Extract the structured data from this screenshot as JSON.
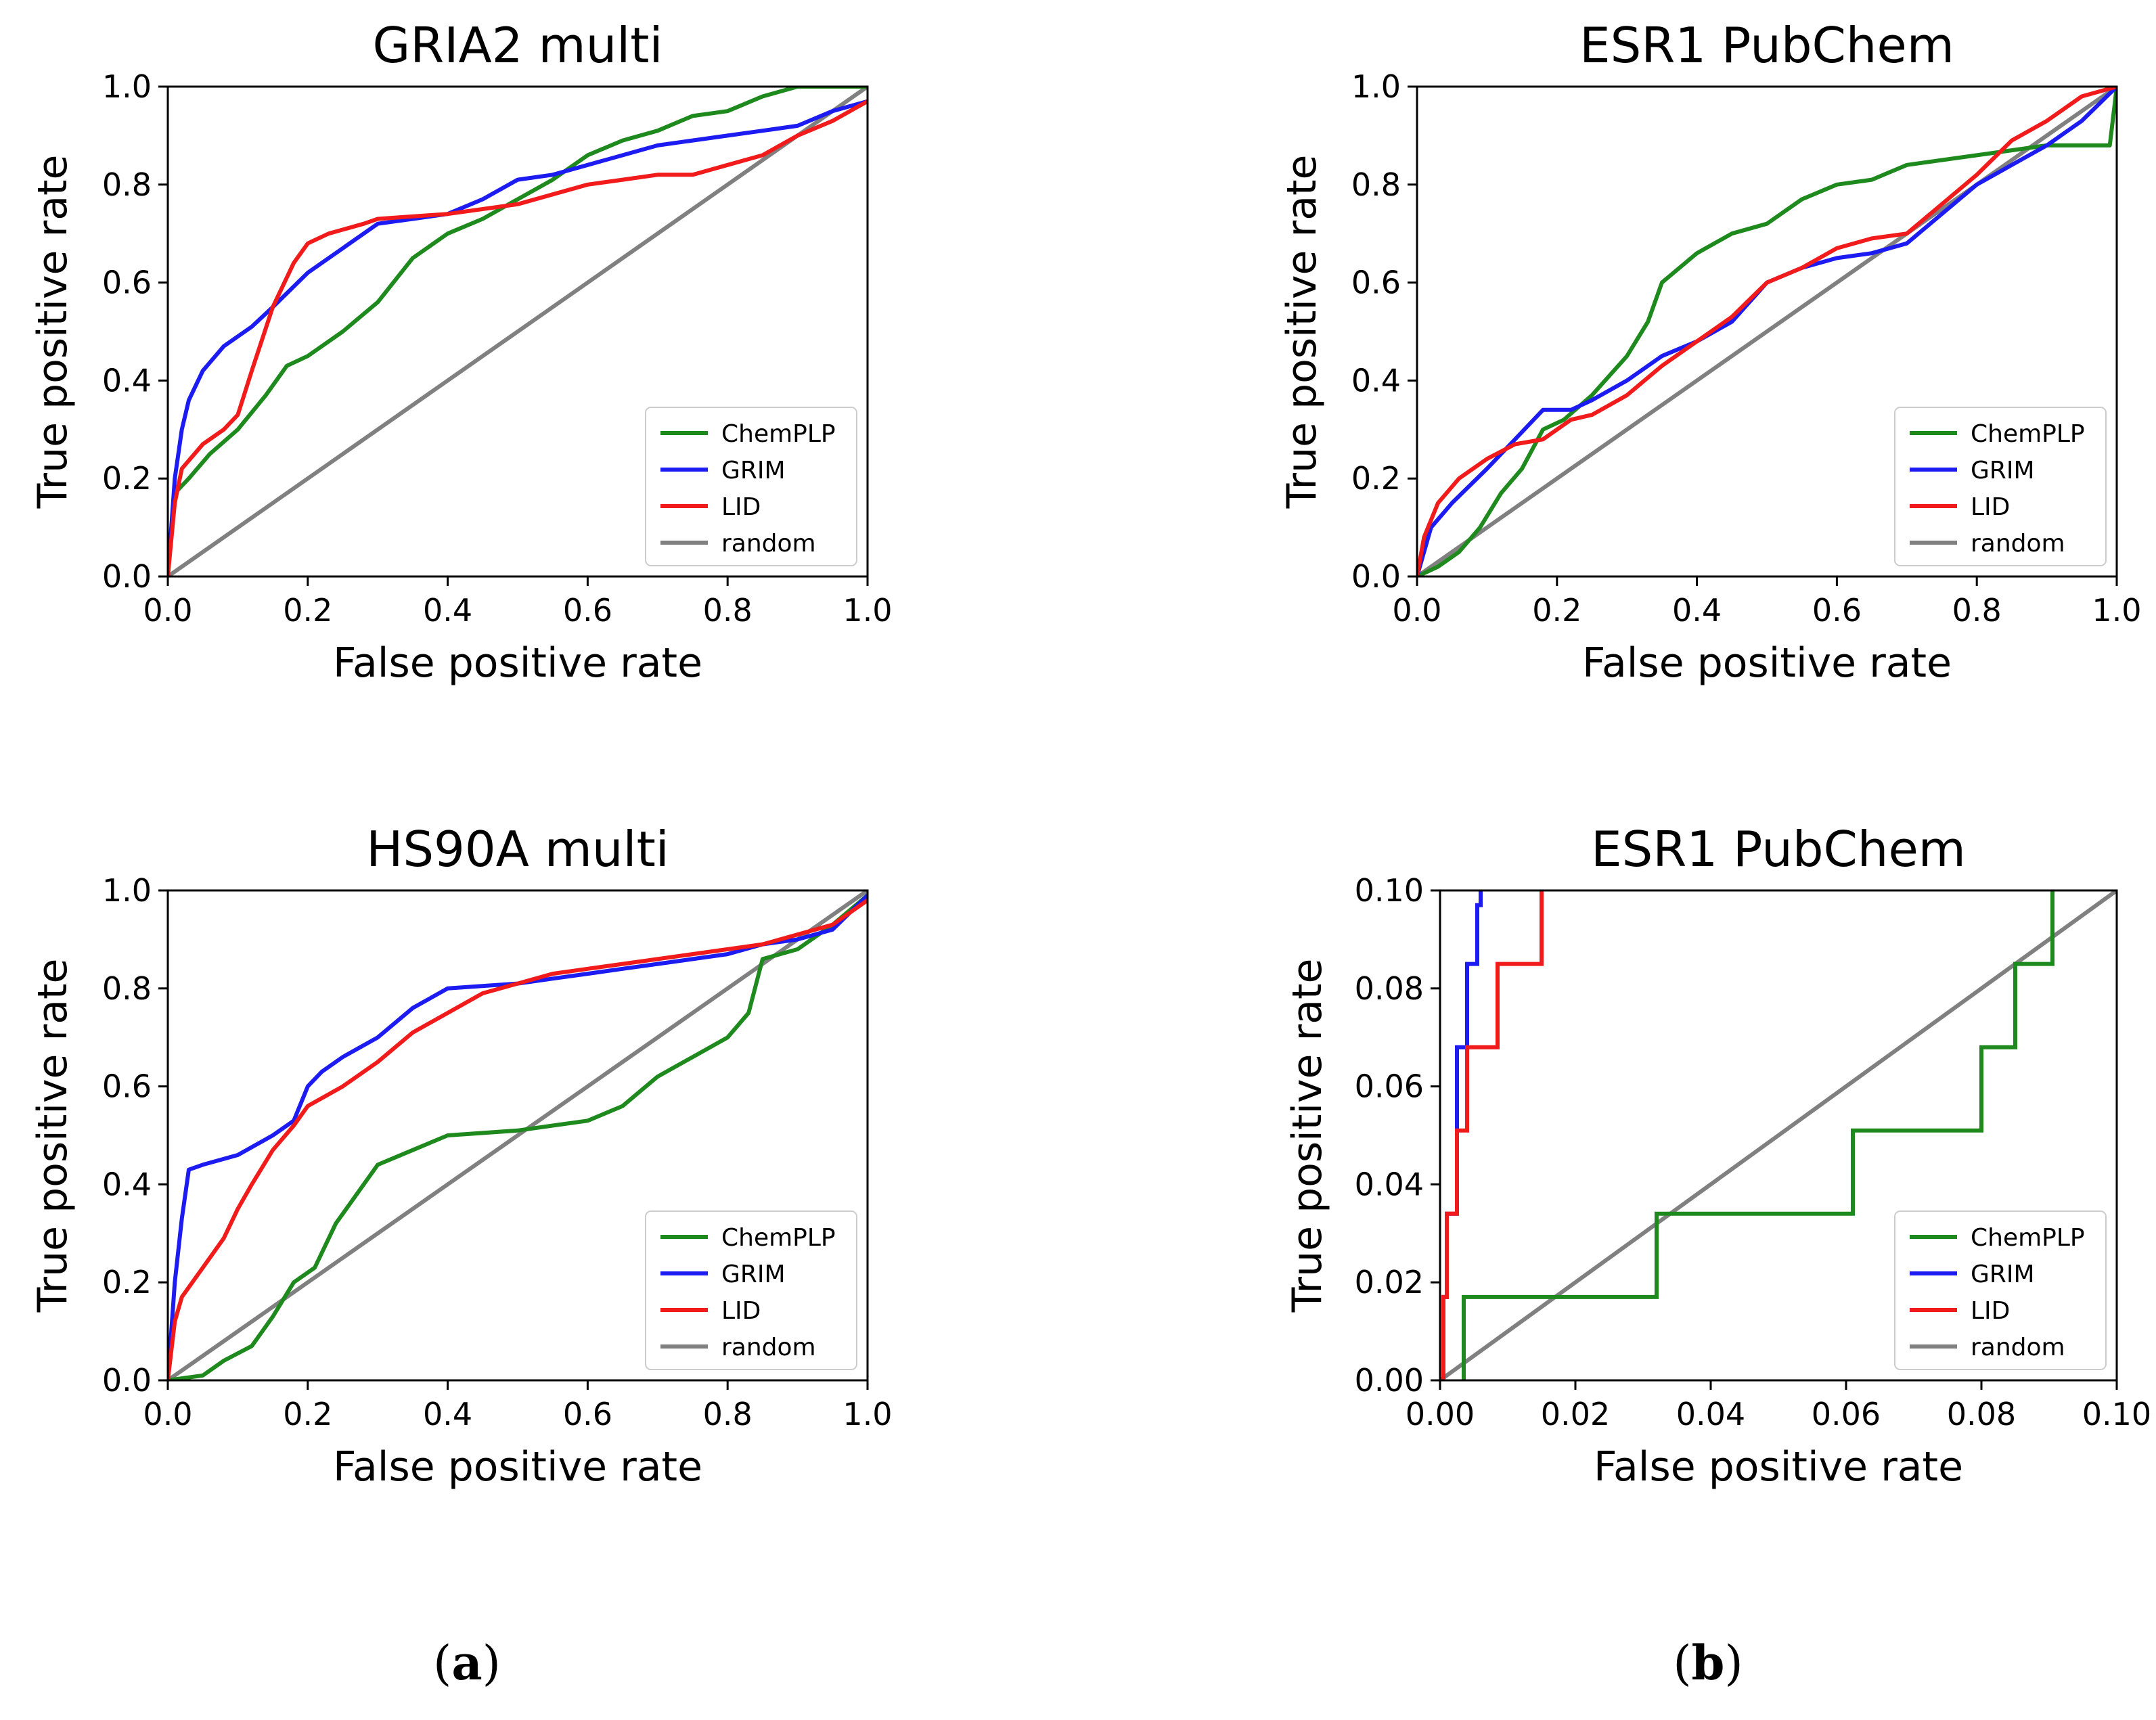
{
  "colors": {
    "ChemPLP": "#1e8a1e",
    "GRIM": "#1b1bf2",
    "LID": "#f21b1b",
    "random": "#808080"
  },
  "captions": {
    "a_open": "(",
    "a_letter": "a",
    "a_close": ")",
    "b_open": "(",
    "b_letter": "b",
    "b_close": ")"
  },
  "chart_data": [
    {
      "type": "line",
      "title": "GRIA2 multi",
      "xlabel": "False positive rate",
      "ylabel": "True positive rate",
      "xlim": [
        0,
        1
      ],
      "ylim": [
        0,
        1
      ],
      "xticks": [
        "0.0",
        "0.2",
        "0.4",
        "0.6",
        "0.8",
        "1.0"
      ],
      "yticks": [
        "0.0",
        "0.2",
        "0.4",
        "0.6",
        "0.8",
        "1.0"
      ],
      "legend": [
        "ChemPLP",
        "GRIM",
        "LID",
        "random"
      ],
      "legend_position": "lower-right",
      "series": [
        {
          "name": "ChemPLP",
          "x": [
            0,
            0.01,
            0.03,
            0.06,
            0.1,
            0.14,
            0.17,
            0.2,
            0.25,
            0.3,
            0.35,
            0.4,
            0.45,
            0.5,
            0.55,
            0.6,
            0.65,
            0.7,
            0.75,
            0.8,
            0.85,
            0.9,
            1.0
          ],
          "y": [
            0,
            0.17,
            0.2,
            0.25,
            0.3,
            0.37,
            0.43,
            0.45,
            0.5,
            0.56,
            0.65,
            0.7,
            0.73,
            0.77,
            0.81,
            0.86,
            0.89,
            0.91,
            0.94,
            0.95,
            0.98,
            1.0,
            1.0
          ]
        },
        {
          "name": "GRIM",
          "x": [
            0,
            0.01,
            0.02,
            0.03,
            0.05,
            0.08,
            0.12,
            0.15,
            0.2,
            0.25,
            0.3,
            0.35,
            0.4,
            0.45,
            0.5,
            0.55,
            0.6,
            0.65,
            0.7,
            0.75,
            0.8,
            0.85,
            0.9,
            0.95,
            1.0
          ],
          "y": [
            0,
            0.2,
            0.3,
            0.36,
            0.42,
            0.47,
            0.51,
            0.55,
            0.62,
            0.67,
            0.72,
            0.73,
            0.74,
            0.77,
            0.81,
            0.82,
            0.84,
            0.86,
            0.88,
            0.89,
            0.9,
            0.91,
            0.92,
            0.95,
            0.97
          ]
        },
        {
          "name": "LID",
          "x": [
            0,
            0.01,
            0.02,
            0.05,
            0.08,
            0.1,
            0.12,
            0.15,
            0.18,
            0.2,
            0.23,
            0.28,
            0.3,
            0.4,
            0.5,
            0.55,
            0.6,
            0.65,
            0.7,
            0.75,
            0.8,
            0.85,
            0.9,
            0.95,
            1.0
          ],
          "y": [
            0,
            0.15,
            0.22,
            0.27,
            0.3,
            0.33,
            0.42,
            0.55,
            0.64,
            0.68,
            0.7,
            0.72,
            0.73,
            0.74,
            0.76,
            0.78,
            0.8,
            0.81,
            0.82,
            0.82,
            0.84,
            0.86,
            0.9,
            0.93,
            0.97
          ]
        },
        {
          "name": "random",
          "x": [
            0,
            1
          ],
          "y": [
            0,
            1
          ]
        }
      ]
    },
    {
      "type": "line",
      "title": "ESR1 PubChem",
      "xlabel": "False positive rate",
      "ylabel": "True positive rate",
      "xlim": [
        0,
        1
      ],
      "ylim": [
        0,
        1
      ],
      "xticks": [
        "0.0",
        "0.2",
        "0.4",
        "0.6",
        "0.8",
        "1.0"
      ],
      "yticks": [
        "0.0",
        "0.2",
        "0.4",
        "0.6",
        "0.8",
        "1.0"
      ],
      "legend": [
        "ChemPLP",
        "GRIM",
        "LID",
        "random"
      ],
      "legend_position": "lower-right",
      "series": [
        {
          "name": "ChemPLP",
          "x": [
            0,
            0.03,
            0.06,
            0.09,
            0.12,
            0.15,
            0.18,
            0.21,
            0.25,
            0.3,
            0.33,
            0.35,
            0.4,
            0.45,
            0.5,
            0.55,
            0.6,
            0.65,
            0.7,
            0.8,
            0.85,
            0.9,
            0.99,
            1.0
          ],
          "y": [
            0,
            0.02,
            0.05,
            0.1,
            0.17,
            0.22,
            0.3,
            0.32,
            0.37,
            0.45,
            0.52,
            0.6,
            0.66,
            0.7,
            0.72,
            0.77,
            0.8,
            0.81,
            0.84,
            0.86,
            0.87,
            0.88,
            0.88,
            1.0
          ]
        },
        {
          "name": "GRIM",
          "x": [
            0,
            0.02,
            0.05,
            0.1,
            0.14,
            0.18,
            0.22,
            0.25,
            0.3,
            0.35,
            0.4,
            0.45,
            0.5,
            0.55,
            0.6,
            0.65,
            0.7,
            0.75,
            0.8,
            0.85,
            0.9,
            0.95,
            1.0
          ],
          "y": [
            0,
            0.1,
            0.15,
            0.22,
            0.28,
            0.34,
            0.34,
            0.36,
            0.4,
            0.45,
            0.48,
            0.52,
            0.6,
            0.63,
            0.65,
            0.66,
            0.68,
            0.74,
            0.8,
            0.84,
            0.88,
            0.93,
            1.0
          ]
        },
        {
          "name": "LID",
          "x": [
            0,
            0.01,
            0.03,
            0.06,
            0.1,
            0.14,
            0.18,
            0.22,
            0.25,
            0.3,
            0.35,
            0.4,
            0.45,
            0.5,
            0.55,
            0.6,
            0.65,
            0.7,
            0.75,
            0.8,
            0.85,
            0.9,
            0.95,
            1.0
          ],
          "y": [
            0,
            0.08,
            0.15,
            0.2,
            0.24,
            0.27,
            0.28,
            0.32,
            0.33,
            0.37,
            0.43,
            0.48,
            0.53,
            0.6,
            0.63,
            0.67,
            0.69,
            0.7,
            0.76,
            0.82,
            0.89,
            0.93,
            0.98,
            1.0
          ]
        },
        {
          "name": "random",
          "x": [
            0,
            1
          ],
          "y": [
            0,
            1
          ]
        }
      ]
    },
    {
      "type": "line",
      "title": "HS90A multi",
      "xlabel": "False positive rate",
      "ylabel": "True positive rate",
      "xlim": [
        0,
        1
      ],
      "ylim": [
        0,
        1
      ],
      "xticks": [
        "0.0",
        "0.2",
        "0.4",
        "0.6",
        "0.8",
        "1.0"
      ],
      "yticks": [
        "0.0",
        "0.2",
        "0.4",
        "0.6",
        "0.8",
        "1.0"
      ],
      "legend": [
        "ChemPLP",
        "GRIM",
        "LID",
        "random"
      ],
      "legend_position": "lower-right",
      "series": [
        {
          "name": "ChemPLP",
          "x": [
            0,
            0.05,
            0.08,
            0.12,
            0.15,
            0.18,
            0.21,
            0.24,
            0.27,
            0.3,
            0.35,
            0.4,
            0.5,
            0.55,
            0.6,
            0.65,
            0.7,
            0.75,
            0.8,
            0.83,
            0.85,
            0.9,
            0.95,
            1.0
          ],
          "y": [
            0,
            0.01,
            0.04,
            0.07,
            0.13,
            0.2,
            0.23,
            0.32,
            0.38,
            0.44,
            0.47,
            0.5,
            0.51,
            0.52,
            0.53,
            0.56,
            0.62,
            0.66,
            0.7,
            0.75,
            0.86,
            0.88,
            0.93,
            0.99
          ]
        },
        {
          "name": "GRIM",
          "x": [
            0,
            0.01,
            0.02,
            0.03,
            0.05,
            0.1,
            0.15,
            0.18,
            0.2,
            0.22,
            0.25,
            0.3,
            0.35,
            0.4,
            0.5,
            0.55,
            0.6,
            0.65,
            0.7,
            0.75,
            0.8,
            0.85,
            0.9,
            0.95,
            1.0
          ],
          "y": [
            0,
            0.2,
            0.33,
            0.43,
            0.44,
            0.46,
            0.5,
            0.53,
            0.6,
            0.63,
            0.66,
            0.7,
            0.76,
            0.8,
            0.81,
            0.82,
            0.83,
            0.84,
            0.85,
            0.86,
            0.87,
            0.89,
            0.9,
            0.92,
            0.99
          ]
        },
        {
          "name": "LID",
          "x": [
            0,
            0.01,
            0.02,
            0.05,
            0.08,
            0.1,
            0.12,
            0.15,
            0.18,
            0.2,
            0.25,
            0.3,
            0.35,
            0.4,
            0.45,
            0.5,
            0.55,
            0.6,
            0.65,
            0.7,
            0.75,
            0.8,
            0.85,
            0.9,
            0.95,
            1.0
          ],
          "y": [
            0,
            0.12,
            0.17,
            0.23,
            0.29,
            0.35,
            0.4,
            0.47,
            0.52,
            0.56,
            0.6,
            0.65,
            0.71,
            0.75,
            0.79,
            0.81,
            0.83,
            0.84,
            0.85,
            0.86,
            0.87,
            0.88,
            0.89,
            0.91,
            0.93,
            0.98
          ]
        },
        {
          "name": "random",
          "x": [
            0,
            1
          ],
          "y": [
            0,
            1
          ]
        }
      ]
    },
    {
      "type": "line",
      "title": "ESR1 PubChem",
      "xlabel": "False positive rate",
      "ylabel": "True positive rate",
      "xlim": [
        0,
        0.1
      ],
      "ylim": [
        0,
        0.1
      ],
      "xticks": [
        "0.00",
        "0.02",
        "0.04",
        "0.06",
        "0.08",
        "0.10"
      ],
      "yticks": [
        "0.00",
        "0.02",
        "0.04",
        "0.06",
        "0.08",
        "0.10"
      ],
      "legend": [
        "ChemPLP",
        "GRIM",
        "LID",
        "random"
      ],
      "legend_position": "lower-right",
      "series": [
        {
          "name": "ChemPLP",
          "step": true,
          "x": [
            0.0035,
            0.0035,
            0.032,
            0.032,
            0.061,
            0.061,
            0.08,
            0.08,
            0.085,
            0.085,
            0.0905,
            0.0905
          ],
          "y": [
            0.0,
            0.017,
            0.017,
            0.034,
            0.034,
            0.051,
            0.051,
            0.068,
            0.068,
            0.085,
            0.085,
            0.1
          ]
        },
        {
          "name": "GRIM",
          "step": true,
          "x": [
            0.0005,
            0.0005,
            0.001,
            0.001,
            0.0025,
            0.0025,
            0.004,
            0.004,
            0.0055,
            0.0055,
            0.006,
            0.006
          ],
          "y": [
            0.0,
            0.017,
            0.017,
            0.034,
            0.034,
            0.068,
            0.068,
            0.085,
            0.085,
            0.097,
            0.097,
            0.1
          ]
        },
        {
          "name": "LID",
          "step": true,
          "x": [
            0.0005,
            0.0005,
            0.001,
            0.001,
            0.0025,
            0.0025,
            0.004,
            0.004,
            0.0065,
            0.0065,
            0.0085,
            0.0085,
            0.015,
            0.015
          ],
          "y": [
            0.0,
            0.017,
            0.017,
            0.034,
            0.034,
            0.051,
            0.051,
            0.068,
            0.068,
            0.068,
            0.068,
            0.085,
            0.085,
            0.1
          ]
        },
        {
          "name": "random",
          "x": [
            0,
            0.1
          ],
          "y": [
            0,
            0.1
          ]
        }
      ]
    }
  ]
}
